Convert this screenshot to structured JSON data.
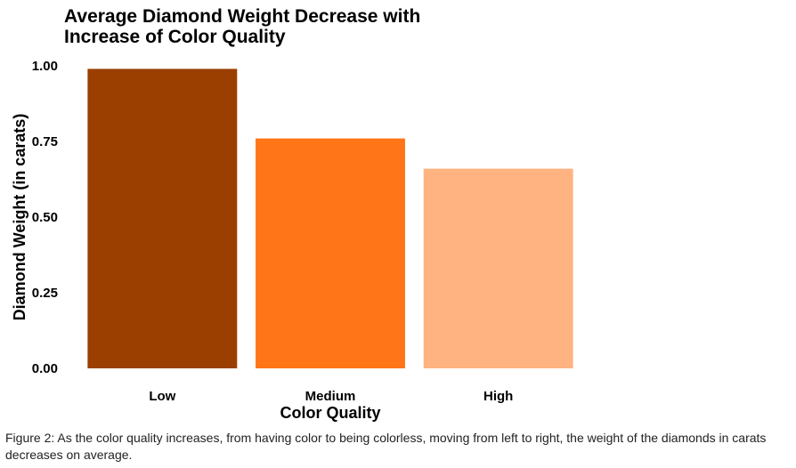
{
  "chart_data": {
    "type": "bar",
    "title_lines": [
      "Average Diamond Weight Decrease with",
      "Increase of Color Quality"
    ],
    "xlabel": "Color Quality",
    "ylabel": "Diamond Weight (in carats)",
    "categories": [
      "Low",
      "Medium",
      "High"
    ],
    "values": [
      0.99,
      0.76,
      0.66
    ],
    "colors": [
      "#9B3F00",
      "#FF7518",
      "#FFB380"
    ],
    "ylim": [
      0,
      1.0
    ],
    "yticks": [
      "0.00",
      "0.25",
      "0.50",
      "0.75",
      "1.00"
    ],
    "grid": false
  },
  "caption": "Figure 2: As the color quality increases, from having color to being colorless, moving from left to right, the weight of the diamonds in carats decreases on average."
}
